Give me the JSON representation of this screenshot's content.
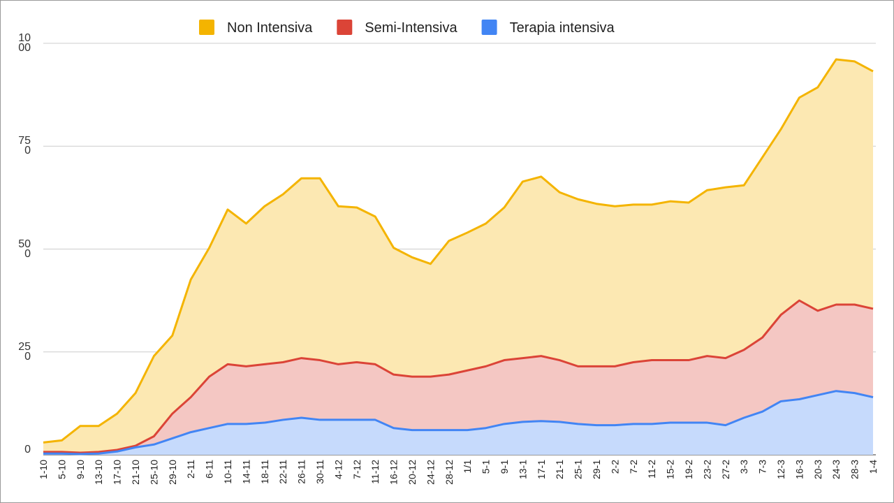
{
  "chart_data": {
    "type": "stacked-area",
    "categories": [
      "1-10",
      "5-10",
      "9-10",
      "13-10",
      "17-10",
      "21-10",
      "25-10",
      "29-10",
      "2-11",
      "6-11",
      "10-11",
      "14-11",
      "18-11",
      "22-11",
      "26-11",
      "30-11",
      "4-12",
      "7-12",
      "11-12",
      "16-12",
      "20-12",
      "24-12",
      "28-12",
      "1/1",
      "5-1",
      "9-1",
      "13-1",
      "17-1",
      "21-1",
      "25-1",
      "29-1",
      "2-2",
      "7-2",
      "11-2",
      "15-2",
      "19-2",
      "23-2",
      "27-2",
      "3-3",
      "7-3",
      "12-3",
      "16-3",
      "20-3",
      "24-3",
      "28-3",
      "1-4"
    ],
    "series": [
      {
        "name": "Non Intensiva",
        "color": "#f4b400",
        "fill": "#fce8b2",
        "values": [
          23,
          28,
          65,
          63,
          88,
          128,
          195,
          190,
          286,
          313,
          376,
          347,
          384,
          408,
          437,
          442,
          384,
          376,
          359,
          308,
          290,
          274,
          325,
          335,
          347,
          371,
          429,
          436,
          408,
          406,
          395,
          389,
          383,
          378,
          386,
          383,
          403,
          415,
          400,
          438,
          451,
          493,
          543,
          596,
          591,
          577
        ]
      },
      {
        "name": "Semi-Intensiva",
        "color": "#db4437",
        "fill": "#f4c7c3",
        "values": [
          4,
          4,
          3,
          4,
          4,
          4,
          20,
          60,
          85,
          125,
          145,
          140,
          142,
          140,
          145,
          145,
          135,
          140,
          135,
          130,
          130,
          130,
          135,
          145,
          150,
          155,
          155,
          158,
          150,
          140,
          143,
          143,
          150,
          155,
          152,
          152,
          162,
          163,
          165,
          180,
          210,
          240,
          205,
          210,
          215,
          215
        ]
      },
      {
        "name": "Terapia intensiva",
        "color": "#4285f4",
        "fill": "#c6dafc",
        "values": [
          3,
          3,
          2,
          3,
          8,
          18,
          25,
          40,
          55,
          65,
          75,
          75,
          78,
          85,
          90,
          85,
          85,
          85,
          85,
          65,
          60,
          60,
          60,
          60,
          65,
          75,
          80,
          82,
          80,
          75,
          72,
          72,
          75,
          75,
          78,
          78,
          78,
          72,
          90,
          105,
          130,
          135,
          145,
          155,
          150,
          140
        ]
      }
    ],
    "ylim": [
      0,
      1000
    ],
    "yticks": [
      0,
      250,
      500,
      750,
      1000
    ],
    "grid": true,
    "legend": "top"
  }
}
